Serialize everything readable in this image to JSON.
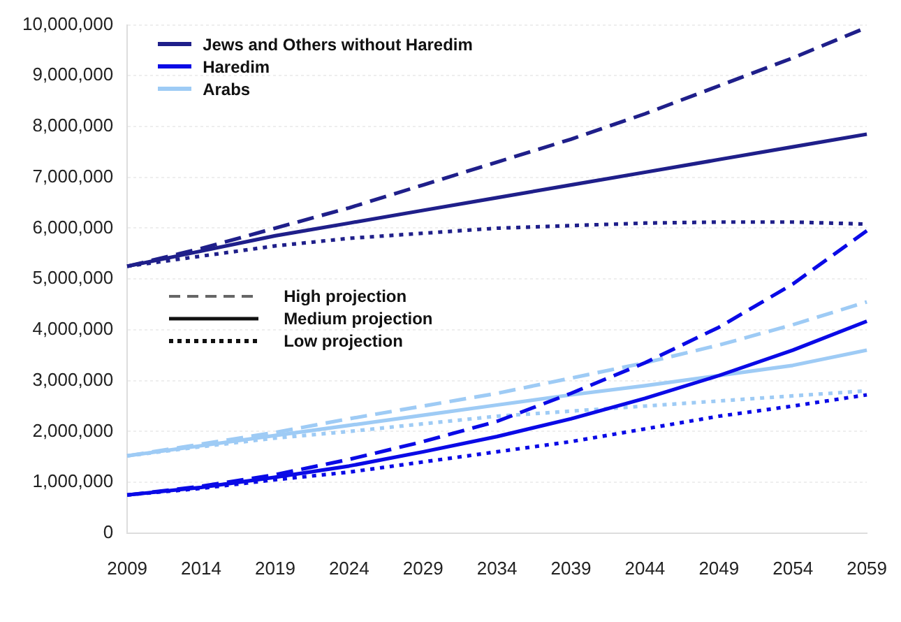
{
  "chart_data": {
    "type": "line",
    "categories": [
      "2009",
      "2014",
      "2019",
      "2024",
      "2029",
      "2034",
      "2039",
      "2044",
      "2049",
      "2054",
      "2059"
    ],
    "series": [
      {
        "color": "#1f1f8a",
        "line_style": "dashed",
        "values": [
          5250000,
          5600000,
          6000000,
          6400000,
          6850000,
          7300000,
          7750000,
          8250000,
          8800000,
          9350000,
          9950000
        ]
      },
      {
        "name": "Jews and Others without Haredim",
        "color": "#1f1f8a",
        "line_style": "solid",
        "values": [
          5250000,
          5550000,
          5850000,
          6100000,
          6350000,
          6600000,
          6850000,
          7100000,
          7350000,
          7600000,
          7850000
        ]
      },
      {
        "color": "#1f1f8a",
        "line_style": "dotted",
        "values": [
          5250000,
          5450000,
          5650000,
          5800000,
          5900000,
          6000000,
          6050000,
          6100000,
          6120000,
          6120000,
          6080000
        ]
      },
      {
        "color": "#0a0ae6",
        "line_style": "dashed",
        "values": [
          750000,
          920000,
          1150000,
          1450000,
          1800000,
          2200000,
          2750000,
          3350000,
          4050000,
          4900000,
          5950000
        ]
      },
      {
        "name": "Haredim",
        "color": "#0a0ae6",
        "line_style": "solid",
        "values": [
          750000,
          900000,
          1100000,
          1320000,
          1600000,
          1900000,
          2250000,
          2650000,
          3100000,
          3600000,
          4170000
        ]
      },
      {
        "color": "#0a0ae6",
        "line_style": "dotted",
        "values": [
          750000,
          880000,
          1050000,
          1200000,
          1400000,
          1600000,
          1800000,
          2050000,
          2300000,
          2500000,
          2720000
        ]
      },
      {
        "color": "#9ecbf5",
        "line_style": "dashed",
        "values": [
          1520000,
          1750000,
          1980000,
          2250000,
          2500000,
          2750000,
          3050000,
          3350000,
          3700000,
          4100000,
          4550000
        ]
      },
      {
        "name": "Arabs",
        "color": "#9ecbf5",
        "line_style": "solid",
        "values": [
          1520000,
          1720000,
          1920000,
          2120000,
          2320000,
          2520000,
          2720000,
          2900000,
          3100000,
          3300000,
          3600000
        ]
      },
      {
        "color": "#9ecbf5",
        "line_style": "dotted",
        "values": [
          1520000,
          1700000,
          1870000,
          2000000,
          2150000,
          2300000,
          2400000,
          2500000,
          2600000,
          2700000,
          2800000
        ]
      }
    ],
    "ylim": [
      0,
      10000000
    ],
    "yticks": [
      0,
      {
        "value": 1000000,
        "label": "1,000,000"
      },
      {
        "value": 2000000,
        "label": "2,000,000"
      },
      {
        "value": 3000000,
        "label": "3,000,000"
      },
      {
        "value": 4000000,
        "label": "4,000,000"
      },
      {
        "value": 5000000,
        "label": "5,000,000"
      },
      {
        "value": 6000000,
        "label": "6,000,000"
      },
      {
        "value": 7000000,
        "label": "7,000,000"
      },
      {
        "value": 8000000,
        "label": "8,000,000"
      },
      {
        "value": 9000000,
        "label": "9,000,000"
      },
      {
        "value": 10000000,
        "label": "10,000,000"
      }
    ],
    "annotations": [
      "High projection",
      "Medium projection",
      "Low projection"
    ],
    "grid": "y",
    "legend": "top left",
    "marker": "none"
  }
}
